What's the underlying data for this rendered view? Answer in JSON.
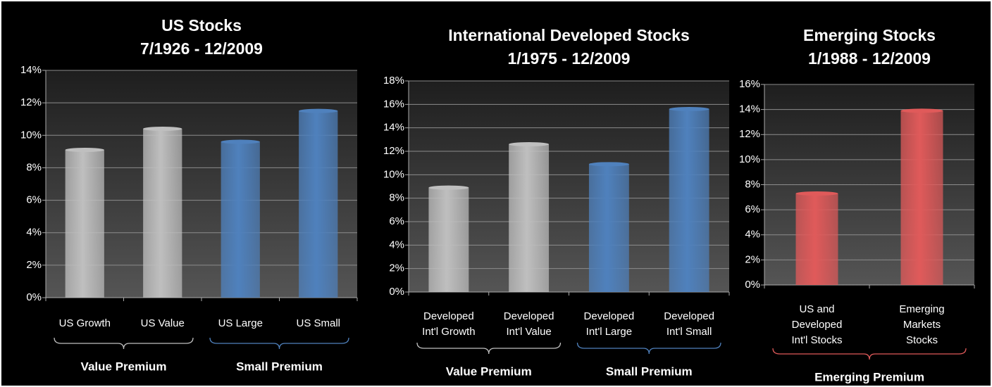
{
  "chart_data": [
    {
      "type": "bar",
      "title": "US Stocks\n7/1926 - 12/2009",
      "categories": [
        "US Growth",
        "US Value",
        "US Large",
        "US Small"
      ],
      "series": [
        {
          "name": "Value Premium",
          "color": "#bfbfbf",
          "values": [
            9.1,
            10.4,
            null,
            null
          ]
        },
        {
          "name": "Small Premium",
          "color": "#4f81bd",
          "values": [
            null,
            null,
            9.6,
            11.5
          ]
        }
      ],
      "ylim": [
        0,
        14
      ],
      "yticks": [
        {
          "value": 0,
          "label": "0%"
        },
        {
          "value": 2,
          "label": "2%"
        },
        {
          "value": 4,
          "label": "4%"
        },
        {
          "value": 6,
          "label": "6%"
        },
        {
          "value": 8,
          "label": "8%"
        },
        {
          "value": 10,
          "label": "10%"
        },
        {
          "value": 12,
          "label": "12%"
        },
        {
          "value": 14,
          "label": "14%"
        }
      ],
      "grid": true
    },
    {
      "type": "bar",
      "title": "International Developed Stocks\n1/1975 - 12/2009",
      "categories": [
        "Developed\nInt'l Growth",
        "Developed\nInt'l Value",
        "Developed\nInt'l Large",
        "Developed\nInt'l Small"
      ],
      "series": [
        {
          "name": "Value Premium",
          "color": "#bfbfbf",
          "values": [
            8.9,
            12.6,
            null,
            null
          ]
        },
        {
          "name": "Small Premium",
          "color": "#4f81bd",
          "values": [
            null,
            null,
            10.9,
            15.6
          ]
        }
      ],
      "ylim": [
        0,
        18
      ],
      "yticks": [
        {
          "value": 0,
          "label": "0%"
        },
        {
          "value": 2,
          "label": "2%"
        },
        {
          "value": 4,
          "label": "4%"
        },
        {
          "value": 6,
          "label": "6%"
        },
        {
          "value": 8,
          "label": "8%"
        },
        {
          "value": 10,
          "label": "10%"
        },
        {
          "value": 12,
          "label": "12%"
        },
        {
          "value": 14,
          "label": "14%"
        },
        {
          "value": 16,
          "label": "16%"
        },
        {
          "value": 18,
          "label": "18%"
        }
      ],
      "grid": true
    },
    {
      "type": "bar",
      "title": "Emerging Stocks\n1/1988 - 12/2009",
      "categories": [
        "US and\nDeveloped\nInt'l Stocks",
        "Emerging\nMarkets\nStocks"
      ],
      "series": [
        {
          "name": "Emerging Premium",
          "color": "#e05a5a",
          "values": [
            7.3,
            13.9
          ]
        }
      ],
      "ylim": [
        0,
        16
      ],
      "yticks": [
        {
          "value": 0,
          "label": "0%"
        },
        {
          "value": 2,
          "label": "2%"
        },
        {
          "value": 4,
          "label": "4%"
        },
        {
          "value": 6,
          "label": "6%"
        },
        {
          "value": 8,
          "label": "8%"
        },
        {
          "value": 10,
          "label": "10%"
        },
        {
          "value": 12,
          "label": "12%"
        },
        {
          "value": 14,
          "label": "14%"
        },
        {
          "value": 16,
          "label": "16%"
        }
      ],
      "grid": true
    }
  ]
}
